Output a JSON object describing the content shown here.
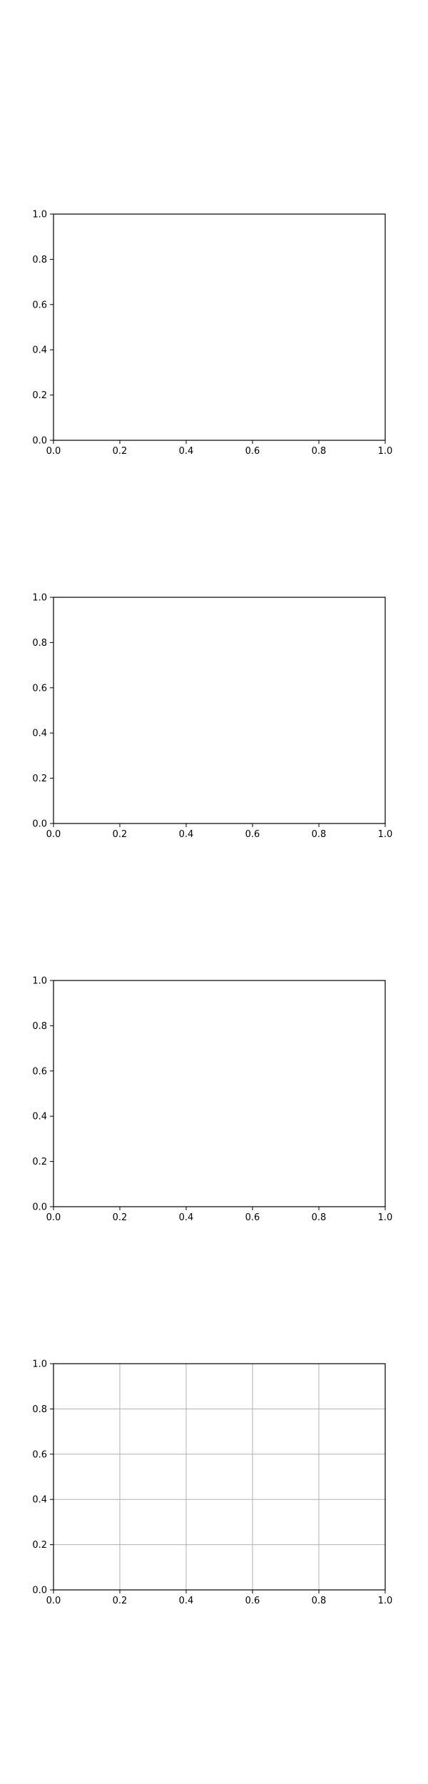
{
  "chart_data": [
    {
      "type": "line",
      "series": [],
      "xlim": [
        0,
        1
      ],
      "ylim": [
        0,
        1
      ],
      "x_ticks": [
        "0.0",
        "0.2",
        "0.4",
        "0.6",
        "0.8",
        "1.0"
      ],
      "y_ticks": [
        "0.0",
        "0.2",
        "0.4",
        "0.6",
        "0.8",
        "1.0"
      ],
      "grid": false
    },
    {
      "type": "line",
      "series": [],
      "xlim": [
        0,
        1
      ],
      "ylim": [
        0,
        1
      ],
      "x_ticks": [
        "0.0",
        "0.2",
        "0.4",
        "0.6",
        "0.8",
        "1.0"
      ],
      "y_ticks": [
        "0.0",
        "0.2",
        "0.4",
        "0.6",
        "0.8",
        "1.0"
      ],
      "grid": false
    },
    {
      "type": "line",
      "series": [],
      "xlim": [
        0,
        1
      ],
      "ylim": [
        0,
        1
      ],
      "x_ticks": [
        "0.0",
        "0.2",
        "0.4",
        "0.6",
        "0.8",
        "1.0"
      ],
      "y_ticks": [
        "0.0",
        "0.2",
        "0.4",
        "0.6",
        "0.8",
        "1.0"
      ],
      "grid": false
    },
    {
      "type": "line",
      "series": [],
      "xlim": [
        0,
        1
      ],
      "ylim": [
        0,
        1
      ],
      "x_ticks": [
        "0.0",
        "0.2",
        "0.4",
        "0.6",
        "0.8",
        "1.0"
      ],
      "y_ticks": [
        "0.0",
        "0.2",
        "0.4",
        "0.6",
        "0.8",
        "1.0"
      ],
      "grid": true
    }
  ],
  "colors": {
    "axes": "#000000",
    "grid": "#b0b0b0",
    "background": "#ffffff"
  }
}
